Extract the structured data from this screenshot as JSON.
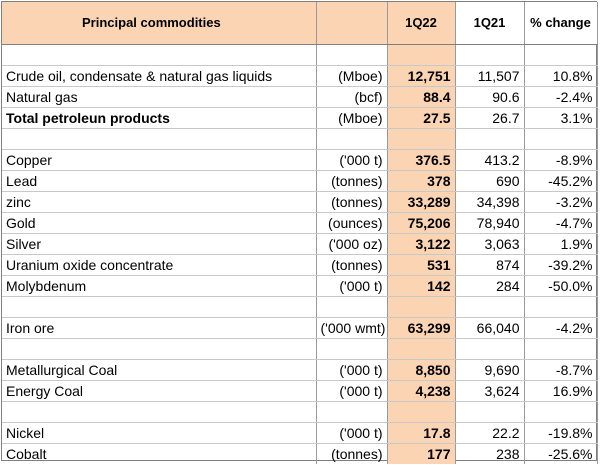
{
  "header": {
    "name": "Principal commodities",
    "unit": "",
    "q22": "1Q22",
    "q21": "1Q21",
    "change": "% change"
  },
  "rows": [
    {
      "spacer": true
    },
    {
      "name": "Crude oil, condensate & natural gas liquids",
      "unit": "(Mboe)",
      "q22": "12,751",
      "q21": "11,507",
      "change": "10.8%"
    },
    {
      "name": "Natural gas",
      "unit": "(bcf)",
      "q22": "88.4",
      "q21": "90.6",
      "change": "-2.4%"
    },
    {
      "name": "Total petroleun products",
      "unit": "(Mboe)",
      "q22": "27.5",
      "q21": "26.7",
      "change": "3.1%",
      "bold": true
    },
    {
      "spacer": true
    },
    {
      "name": "Copper",
      "unit": "('000 t)",
      "q22": "376.5",
      "q21": "413.2",
      "change": "-8.9%"
    },
    {
      "name": "Lead",
      "unit": "(tonnes)",
      "q22": "378",
      "q21": "690",
      "change": "-45.2%"
    },
    {
      "name": "zinc",
      "unit": "(tonnes)",
      "q22": "33,289",
      "q21": "34,398",
      "change": "-3.2%"
    },
    {
      "name": "Gold",
      "unit": "(ounces)",
      "q22": "75,206",
      "q21": "78,940",
      "change": "-4.7%"
    },
    {
      "name": "Silver",
      "unit": "('000 oz)",
      "q22": "3,122",
      "q21": "3,063",
      "change": "1.9%"
    },
    {
      "name": "Uranium oxide concentrate",
      "unit": "(tonnes)",
      "q22": "531",
      "q21": "874",
      "change": "-39.2%"
    },
    {
      "name": "Molybdenum",
      "unit": "('000 t)",
      "q22": "142",
      "q21": "284",
      "change": "-50.0%"
    },
    {
      "spacer": true
    },
    {
      "name": "Iron ore",
      "unit": "('000 wmt)",
      "q22": "63,299",
      "q21": "66,040",
      "change": "-4.2%"
    },
    {
      "spacer": true
    },
    {
      "name": "Metallurgical Coal",
      "unit": "('000 t)",
      "q22": "8,850",
      "q21": "9,690",
      "change": "-8.7%"
    },
    {
      "name": "Energy Coal",
      "unit": "('000 t)",
      "q22": "4,238",
      "q21": "3,624",
      "change": "16.9%"
    },
    {
      "spacer": true
    },
    {
      "name": "Nickel",
      "unit": "('000 t)",
      "q22": "17.8",
      "q21": "22.2",
      "change": "-19.8%"
    },
    {
      "name": "Cobalt",
      "unit": "(tonnes)",
      "q22": "177",
      "q21": "238",
      "change": "-25.6%"
    }
  ]
}
